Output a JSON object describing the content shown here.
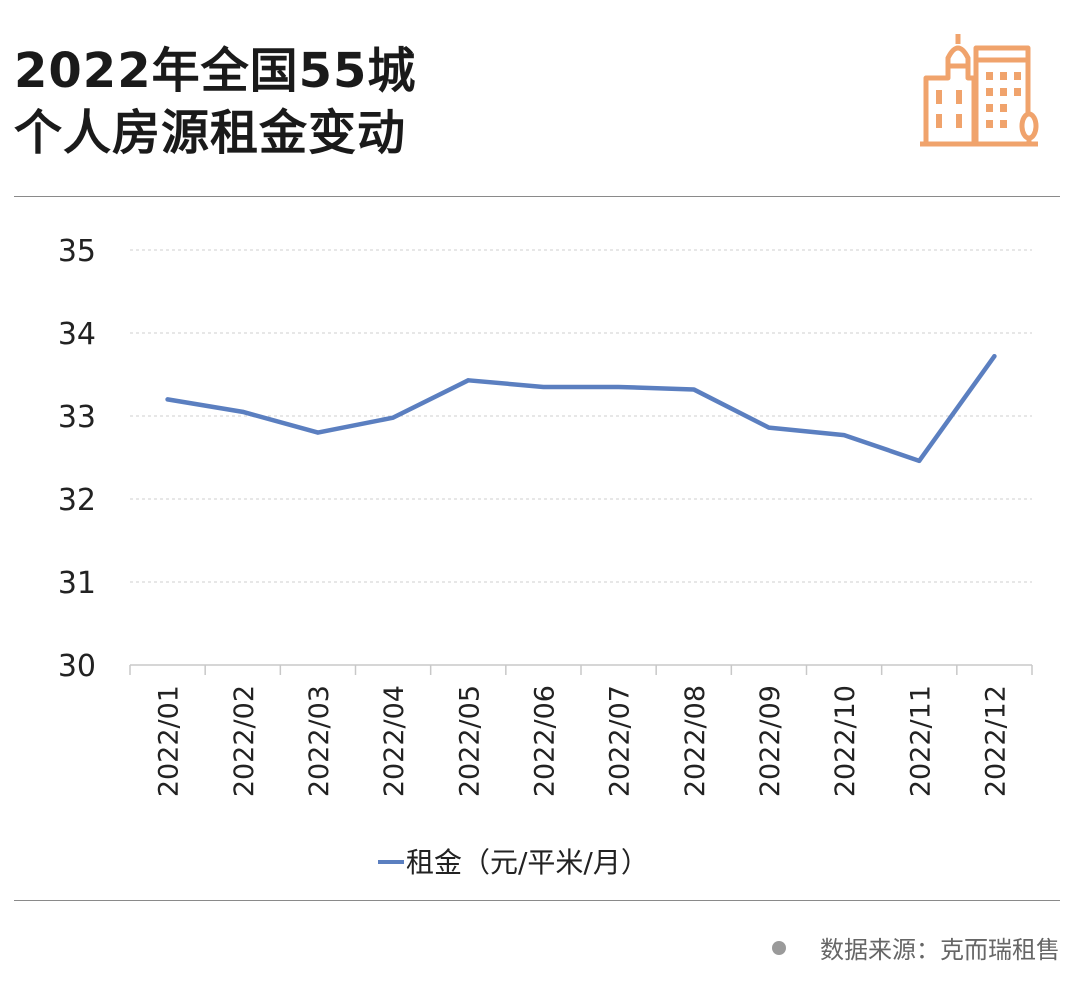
{
  "header": {
    "title_line1": "2022年全国55城",
    "title_line2": "个人房源租金变动",
    "logo_icon": "city-buildings-icon",
    "logo_color": "#f0a36c"
  },
  "chart_data": {
    "type": "line",
    "categories": [
      "2022/01",
      "2022/02",
      "2022/03",
      "2022/04",
      "2022/05",
      "2022/06",
      "2022/07",
      "2022/08",
      "2022/09",
      "2022/10",
      "2022/11",
      "2022/12"
    ],
    "series": [
      {
        "name": "租金（元/平米/月）",
        "values": [
          33.2,
          33.05,
          32.8,
          32.98,
          33.43,
          33.35,
          33.35,
          33.32,
          32.86,
          32.77,
          32.46,
          33.72
        ],
        "color": "#5b7fc0"
      }
    ],
    "yticks": [
      "30",
      "31",
      "32",
      "33",
      "34",
      "35"
    ],
    "ylim": [
      30,
      35
    ],
    "grid": true,
    "legend_position": "bottom",
    "title": "",
    "xlabel": "",
    "ylabel": ""
  },
  "legend": {
    "label": "租金（元/平米/月）"
  },
  "footer": {
    "source": "数据来源：克而瑞租售"
  }
}
